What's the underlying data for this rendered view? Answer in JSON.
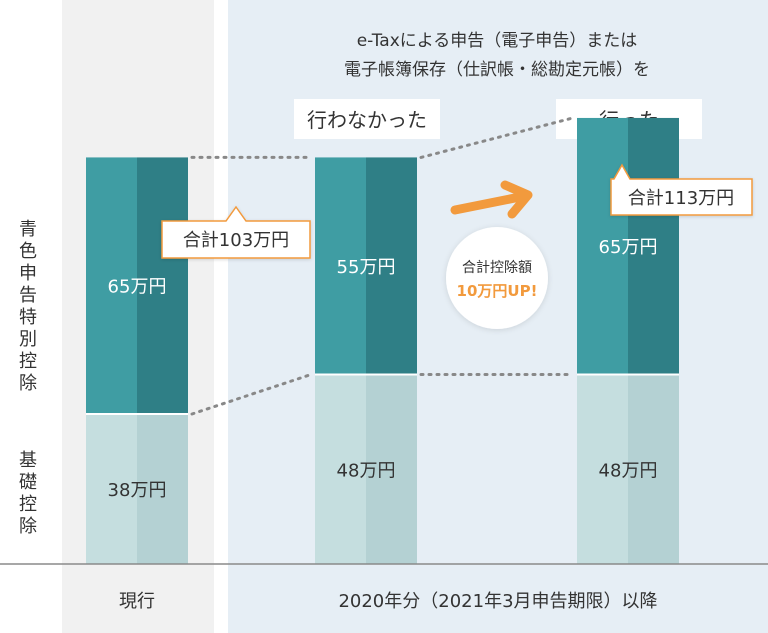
{
  "chart_data": {
    "type": "bar",
    "stacked": true,
    "header_line1": "e-Taxによる申告（電子申告）または",
    "header_line2": "電子帳簿保存（仕訳帳・総勘定元帳）を",
    "ylabel_top": "青色申告特別控除",
    "ylabel_bottom": "基礎控除",
    "period_current": "現行",
    "period_new": "2020年分（2021年3月申告期限）以降",
    "categories": [
      "現行",
      "行わなかった",
      "行った"
    ],
    "category_labels": [
      "",
      "行わなかった",
      "行った"
    ],
    "series": [
      {
        "name": "基礎控除",
        "values": [
          38,
          48,
          48
        ],
        "labels": [
          "38万円",
          "48万円",
          "48万円"
        ]
      },
      {
        "name": "青色申告特別控除",
        "values": [
          65,
          55,
          65
        ],
        "labels": [
          "65万円",
          "55万円",
          "65万円"
        ]
      }
    ],
    "totals": [
      103,
      103,
      113
    ],
    "total_callouts": [
      {
        "text": "合計103万円"
      },
      {
        "text": "合計113万円"
      }
    ],
    "badge_line1": "合計控除額",
    "badge_line2": "10万円UP!",
    "unit": "万円",
    "colors": {
      "blue_light": "#3f9da3",
      "blue_dark": "#2f7f86",
      "basic_light": "#c5dedf",
      "basic_dark": "#b4d1d3",
      "left_panel": "#f1f1f1",
      "right_panel": "#e6eef5",
      "accent_orange": "#f29a3d",
      "dotted": "#888888"
    }
  }
}
